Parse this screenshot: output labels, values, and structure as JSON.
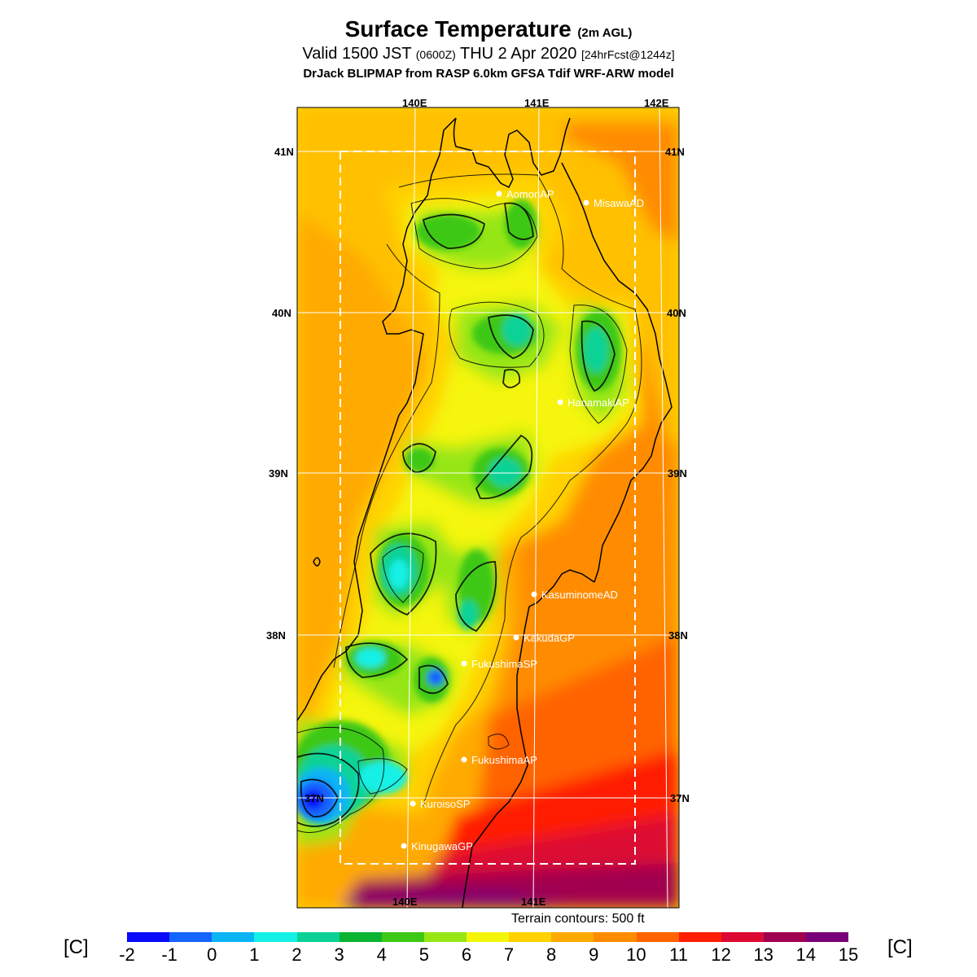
{
  "header": {
    "title": "Surface Temperature",
    "title_note": "(2m AGL)",
    "valid_prefix": "Valid 1500 JST",
    "valid_zulu": "(0600Z)",
    "valid_date": "THU 2 Apr 2020",
    "forecast": "[24hrFcst@1244z]",
    "model": "DrJack BLIPMAP from RASP 6.0km GFSA Tdif WRF-ARW model"
  },
  "grid_labels": {
    "lon_top": [
      "140E",
      "141E",
      "142E"
    ],
    "lon_bottom": [
      "140E",
      "141E"
    ],
    "lat_left": [
      "41N",
      "40N",
      "39N",
      "38N",
      "37N"
    ],
    "lat_right": [
      "41N",
      "40N",
      "39N",
      "38N",
      "37N"
    ]
  },
  "stations": [
    {
      "name": "AomoriAP"
    },
    {
      "name": "MisawaAD"
    },
    {
      "name": "HanamakiAP"
    },
    {
      "name": "KasuminomeAD"
    },
    {
      "name": "KakudaGP"
    },
    {
      "name": "FukushimaSP"
    },
    {
      "name": "FukushimaAP"
    },
    {
      "name": "KuroisoSP"
    },
    {
      "name": "KinugawaGP"
    }
  ],
  "terrain_note": "Terrain contours: 500 ft",
  "units": "[C]",
  "colorbar": {
    "labels": [
      "-2",
      "-1",
      "0",
      "1",
      "2",
      "3",
      "4",
      "5",
      "6",
      "7",
      "8",
      "9",
      "10",
      "11",
      "12",
      "13",
      "14",
      "15"
    ],
    "colors": [
      "#0a0afa",
      "#1464ff",
      "#0ab4f5",
      "#14f0e6",
      "#0ad296",
      "#0ab432",
      "#3cc814",
      "#96e614",
      "#f5f50a",
      "#ffd200",
      "#ffaa00",
      "#ff8c00",
      "#ff6400",
      "#ff1e00",
      "#dc0a32",
      "#a00050",
      "#780078"
    ]
  }
}
